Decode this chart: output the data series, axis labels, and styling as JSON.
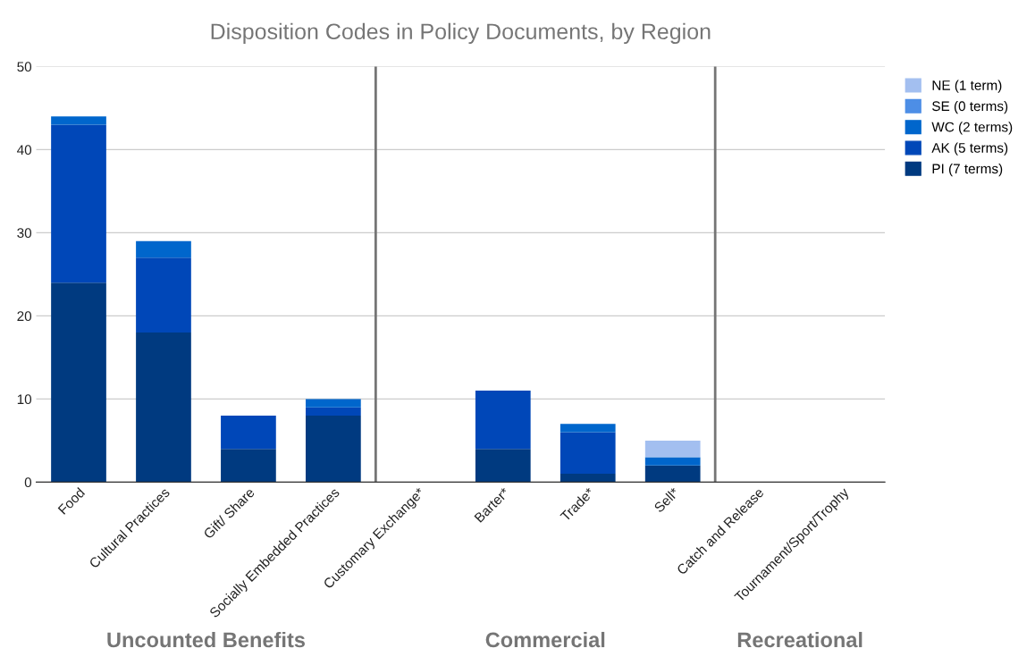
{
  "chart_data": {
    "type": "bar",
    "title": "Disposition Codes in Policy Documents, by Region",
    "stacked": true,
    "categories": [
      "Food",
      "Cultural Practices",
      "Gift/ Share",
      "Socially Embedded Practices",
      "Customary Exchange*",
      "Barter*",
      "Trade*",
      "Sell*",
      "Catch and Release",
      "Tournament/Sport/Trophy"
    ],
    "series": [
      {
        "name": "PI (7 terms)",
        "color": "#003a80",
        "values": [
          24,
          18,
          4,
          8,
          0,
          4,
          1,
          2,
          0,
          0
        ]
      },
      {
        "name": "AK (5 terms)",
        "color": "#0047b8",
        "values": [
          19,
          9,
          4,
          1,
          0,
          7,
          5,
          0,
          0,
          0
        ]
      },
      {
        "name": "WC (2 terms)",
        "color": "#0066cc",
        "values": [
          1,
          2,
          0,
          1,
          0,
          0,
          1,
          1,
          0,
          0
        ]
      },
      {
        "name": "SE (0 terms)",
        "color": "#4d8ee6",
        "values": [
          0,
          0,
          0,
          0,
          0,
          0,
          0,
          0,
          0,
          0
        ]
      },
      {
        "name": "NE (1 term)",
        "color": "#a3bff0",
        "values": [
          0,
          0,
          0,
          0,
          0,
          0,
          0,
          2,
          0,
          0
        ]
      }
    ],
    "ylim": [
      0,
      50
    ],
    "yticks": [
      0,
      10,
      20,
      30,
      40,
      50
    ],
    "grid": "y",
    "legend": "right",
    "annotations": [
      "Uncounted Benefits",
      "Commercial",
      "Recreational"
    ]
  }
}
